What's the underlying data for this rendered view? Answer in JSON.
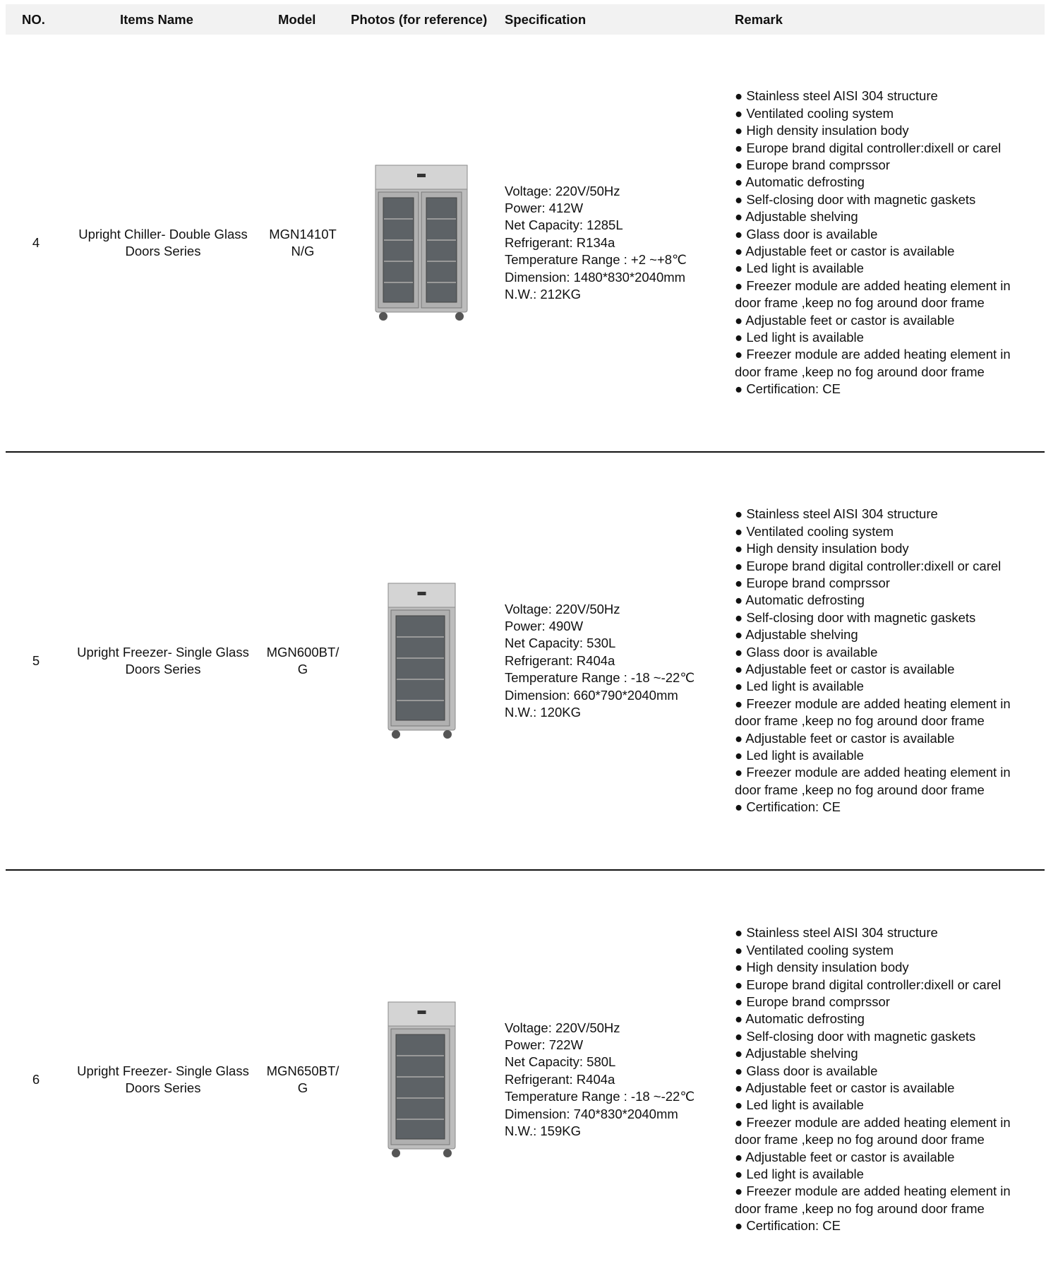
{
  "header": {
    "columns": [
      "NO.",
      "Items Name",
      "Model",
      "Photos (for reference)",
      "Specification",
      "Remark"
    ]
  },
  "rows": [
    {
      "no": "4",
      "item_name": "Upright Chiller- Double Glass Doors Series",
      "model": "MGN1410TN/G",
      "doors": 2,
      "specification": [
        "Voltage: 220V/50Hz",
        "Power: 412W",
        "Net Capacity: 1285L",
        "Refrigerant: R134a",
        "Temperature Range : +2 ~+8℃",
        "Dimension: 1480*830*2040mm",
        "N.W.: 212KG"
      ],
      "remarks": [
        "● Stainless steel AISI 304 structure",
        "● Ventilated cooling system",
        "● High density insulation body",
        "● Europe brand digital controller:dixell or carel",
        "● Europe brand comprssor",
        "● Automatic defrosting",
        "● Self-closing door with magnetic gaskets",
        "● Adjustable shelving",
        "● Glass door is available",
        "● Adjustable feet or castor is available",
        "● Led light is available",
        "● Freezer module are added heating element in door frame ,keep no fog around door frame",
        "● Adjustable feet or castor is available",
        "● Led light is available",
        "● Freezer module are added heating element in door frame ,keep no fog around door frame",
        "● Certification: CE"
      ]
    },
    {
      "no": "5",
      "item_name": "Upright Freezer- Single Glass Doors Series",
      "model": "MGN600BT/G",
      "doors": 1,
      "specification": [
        "Voltage: 220V/50Hz",
        "Power: 490W",
        "Net Capacity: 530L",
        "Refrigerant: R404a",
        "Temperature Range : -18 ~-22℃",
        "Dimension: 660*790*2040mm",
        "N.W.: 120KG"
      ],
      "remarks": [
        "● Stainless steel AISI 304 structure",
        "● Ventilated cooling system",
        "● High density insulation body",
        "● Europe brand digital controller:dixell or carel",
        "● Europe brand comprssor",
        "● Automatic defrosting",
        "● Self-closing door with magnetic gaskets",
        "● Adjustable shelving",
        "● Glass door is available",
        "● Adjustable feet or castor is available",
        "● Led light is available",
        "● Freezer module are added heating element in door frame ,keep no fog around door frame",
        "● Adjustable feet or castor is available",
        "● Led light is available",
        "● Freezer module are added heating element in door frame ,keep no fog around door frame",
        "● Certification: CE"
      ]
    },
    {
      "no": "6",
      "item_name": "Upright Freezer- Single Glass Doors Series",
      "model": "MGN650BT/G",
      "doors": 1,
      "specification": [
        "Voltage: 220V/50Hz",
        "Power: 722W",
        "Net Capacity: 580L",
        "Refrigerant: R404a",
        "Temperature Range : -18 ~-22℃",
        "Dimension: 740*830*2040mm",
        "N.W.: 159KG"
      ],
      "remarks": [
        "● Stainless steel AISI 304 structure",
        "● Ventilated cooling system",
        "● High density insulation body",
        "● Europe brand digital controller:dixell or carel",
        "● Europe brand comprssor",
        "● Automatic defrosting",
        "● Self-closing door with magnetic gaskets",
        "● Adjustable shelving",
        "● Glass door is available",
        "● Adjustable feet or castor is available",
        "● Led light is available",
        "● Freezer module are added heating element in door frame ,keep no fog around door frame",
        "● Adjustable feet or castor is available",
        "● Led light is available",
        "● Freezer module are added heating element in door frame ,keep no fog around door frame",
        "● Certification: CE"
      ]
    }
  ]
}
